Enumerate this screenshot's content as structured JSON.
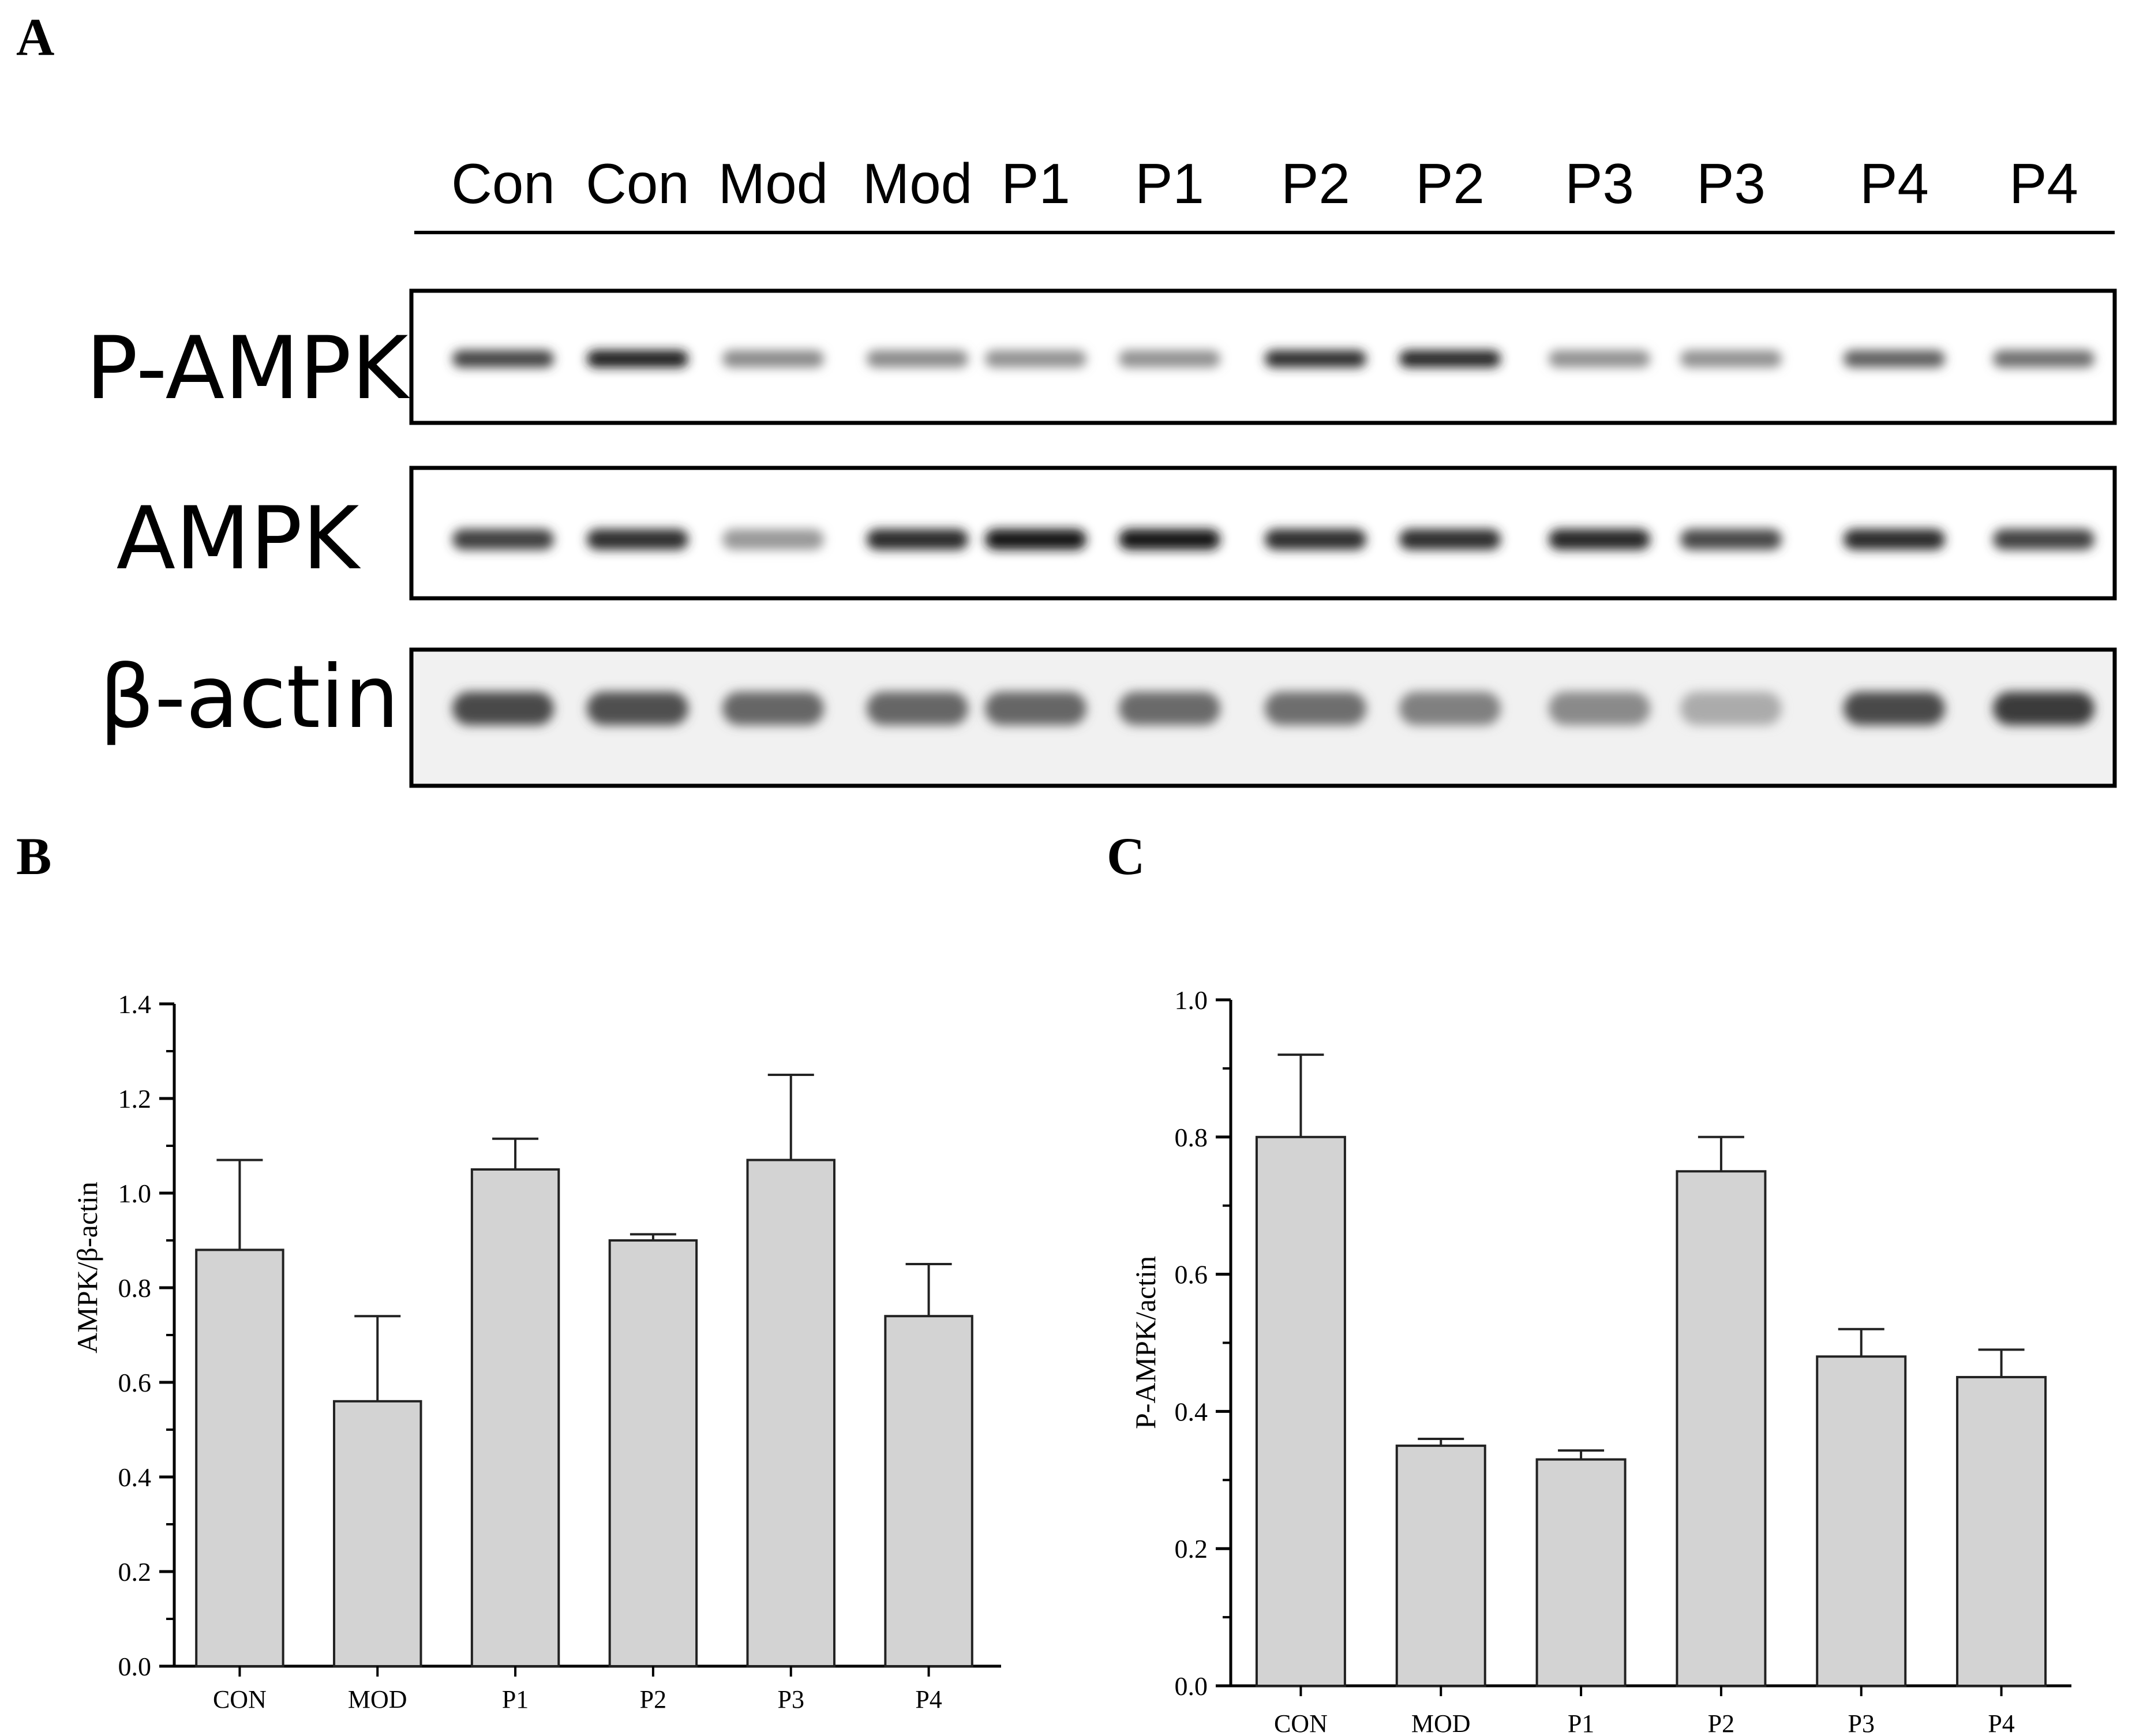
{
  "panels": {
    "a": "A",
    "b": "B",
    "c": "C"
  },
  "blot": {
    "lanes": [
      "Con",
      "Con",
      "Mod",
      "Mod",
      "P1",
      "P1",
      "P2",
      "P2",
      "P3",
      "P3",
      "P4",
      "P4"
    ],
    "rows": [
      {
        "label": "P-AMPK",
        "intensity": [
          0.78,
          0.95,
          0.45,
          0.45,
          0.42,
          0.42,
          0.88,
          0.92,
          0.42,
          0.42,
          0.65,
          0.58
        ]
      },
      {
        "label": "AMPK",
        "intensity": [
          0.8,
          0.88,
          0.38,
          0.9,
          0.98,
          0.98,
          0.88,
          0.88,
          0.92,
          0.75,
          0.9,
          0.78
        ]
      },
      {
        "label": "β-actin",
        "intensity": [
          0.75,
          0.72,
          0.62,
          0.62,
          0.62,
          0.6,
          0.58,
          0.5,
          0.45,
          0.3,
          0.75,
          0.82
        ]
      }
    ]
  },
  "chart_data": [
    {
      "type": "bar",
      "panel": "B",
      "categories": [
        "CON",
        "MOD",
        "P1",
        "P2",
        "P3",
        "P4"
      ],
      "values": [
        0.88,
        0.56,
        1.05,
        0.9,
        1.07,
        0.74
      ],
      "errors": [
        0.19,
        0.18,
        0.065,
        0.013,
        0.18,
        0.11
      ],
      "ylabel": "AMPK/β-actin",
      "ylim": [
        0,
        1.4
      ],
      "yticks": [
        "0.0",
        "0.2",
        "0.4",
        "0.6",
        "0.8",
        "1.0",
        "1.2",
        "1.4"
      ],
      "bar_color": "#d3d3d3"
    },
    {
      "type": "bar",
      "panel": "C",
      "categories": [
        "CON",
        "MOD",
        "P1",
        "P2",
        "P3",
        "P4"
      ],
      "values": [
        0.8,
        0.35,
        0.33,
        0.75,
        0.48,
        0.45
      ],
      "errors": [
        0.12,
        0.01,
        0.013,
        0.05,
        0.04,
        0.04
      ],
      "ylabel": "P-AMPK/actin",
      "ylim": [
        0,
        1.0
      ],
      "yticks": [
        "0.0",
        "0.2",
        "0.4",
        "0.6",
        "0.8",
        "1.0"
      ],
      "bar_color": "#d3d3d3"
    }
  ]
}
